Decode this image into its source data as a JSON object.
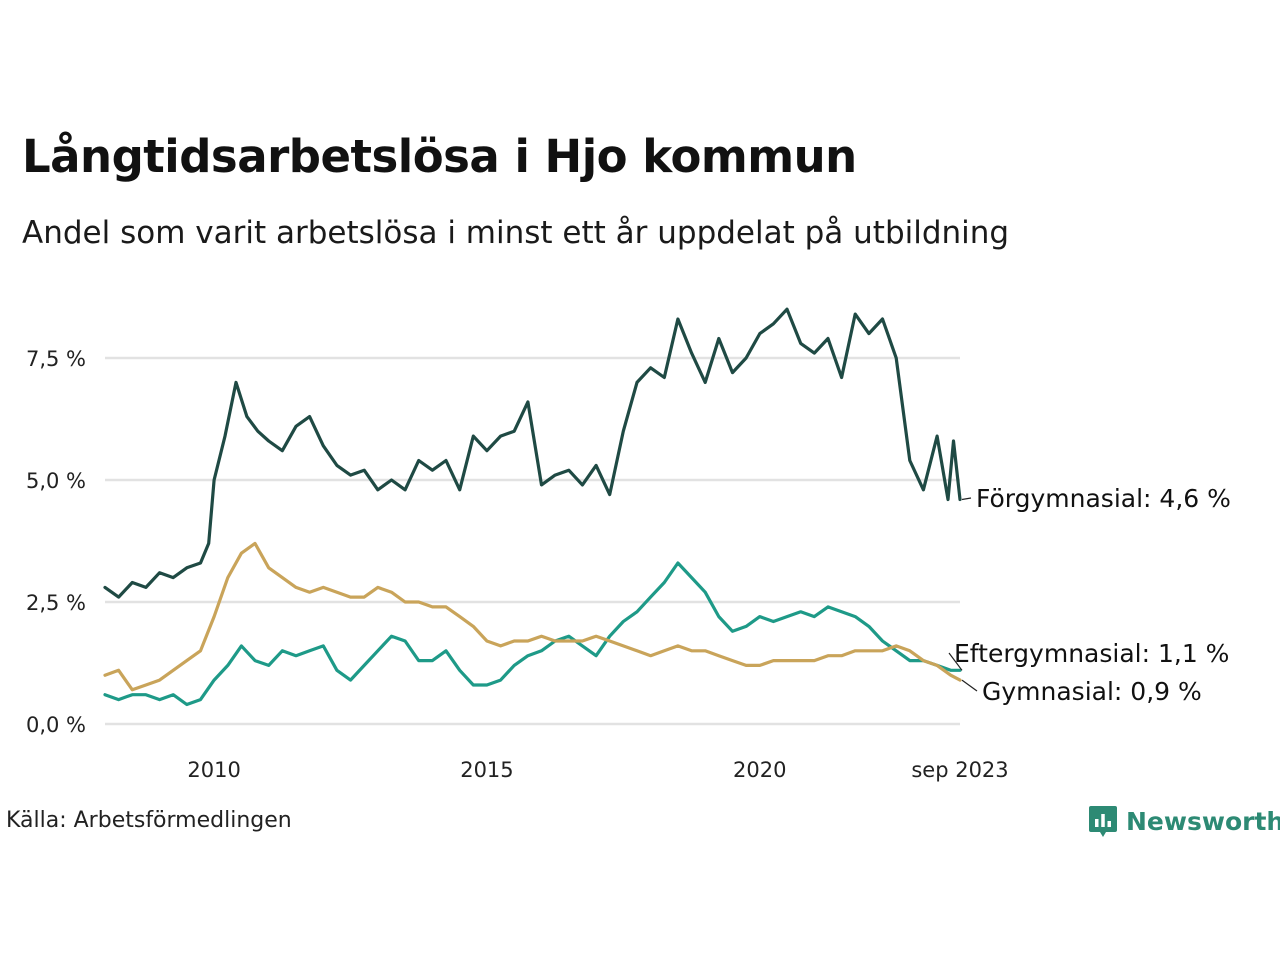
{
  "title": "Långtidsarbetslösa i Hjo kommun",
  "subtitle": "Andel som varit arbetslösa i minst ett år uppdelat på utbildning",
  "source": "Källa: Arbetsförmedlingen",
  "brand": {
    "name": "Newsworthy",
    "icon": "newsworthy-logo-icon",
    "color": "#2d8a74"
  },
  "chart_data": {
    "type": "line",
    "title": "Långtidsarbetslösa i Hjo kommun",
    "ylabel": "",
    "xlabel": "",
    "ylim": [
      0,
      8.8
    ],
    "xlim": [
      2008.0,
      2023.67
    ],
    "grid": true,
    "y_ticks": [
      {
        "value": 0,
        "label": "0,0 %"
      },
      {
        "value": 2.5,
        "label": "2,5 %"
      },
      {
        "value": 5.0,
        "label": "5,0 %"
      },
      {
        "value": 7.5,
        "label": "7,5 %"
      }
    ],
    "x_ticks": [
      {
        "value": 2010.0,
        "label": "2010"
      },
      {
        "value": 2015.0,
        "label": "2015"
      },
      {
        "value": 2020.0,
        "label": "2020"
      },
      {
        "value": 2023.67,
        "label": "sep 2023"
      }
    ],
    "series": [
      {
        "name": "Förgymnasial",
        "end_label": "Förgymnasial: 4,6 %",
        "color": "#1f4a44",
        "points": [
          [
            2008.0,
            2.8
          ],
          [
            2008.25,
            2.6
          ],
          [
            2008.5,
            2.9
          ],
          [
            2008.75,
            2.8
          ],
          [
            2009.0,
            3.1
          ],
          [
            2009.25,
            3.0
          ],
          [
            2009.5,
            3.2
          ],
          [
            2009.75,
            3.3
          ],
          [
            2009.9,
            3.7
          ],
          [
            2010.0,
            5.0
          ],
          [
            2010.2,
            5.9
          ],
          [
            2010.4,
            7.0
          ],
          [
            2010.6,
            6.3
          ],
          [
            2010.8,
            6.0
          ],
          [
            2011.0,
            5.8
          ],
          [
            2011.25,
            5.6
          ],
          [
            2011.5,
            6.1
          ],
          [
            2011.75,
            6.3
          ],
          [
            2012.0,
            5.7
          ],
          [
            2012.25,
            5.3
          ],
          [
            2012.5,
            5.1
          ],
          [
            2012.75,
            5.2
          ],
          [
            2013.0,
            4.8
          ],
          [
            2013.25,
            5.0
          ],
          [
            2013.5,
            4.8
          ],
          [
            2013.75,
            5.4
          ],
          [
            2014.0,
            5.2
          ],
          [
            2014.25,
            5.4
          ],
          [
            2014.5,
            4.8
          ],
          [
            2014.75,
            5.9
          ],
          [
            2015.0,
            5.6
          ],
          [
            2015.25,
            5.9
          ],
          [
            2015.5,
            6.0
          ],
          [
            2015.75,
            6.6
          ],
          [
            2016.0,
            4.9
          ],
          [
            2016.25,
            5.1
          ],
          [
            2016.5,
            5.2
          ],
          [
            2016.75,
            4.9
          ],
          [
            2017.0,
            5.3
          ],
          [
            2017.25,
            4.7
          ],
          [
            2017.5,
            6.0
          ],
          [
            2017.75,
            7.0
          ],
          [
            2018.0,
            7.3
          ],
          [
            2018.25,
            7.1
          ],
          [
            2018.5,
            8.3
          ],
          [
            2018.75,
            7.6
          ],
          [
            2019.0,
            7.0
          ],
          [
            2019.25,
            7.9
          ],
          [
            2019.5,
            7.2
          ],
          [
            2019.75,
            7.5
          ],
          [
            2020.0,
            8.0
          ],
          [
            2020.25,
            8.2
          ],
          [
            2020.5,
            8.5
          ],
          [
            2020.75,
            7.8
          ],
          [
            2021.0,
            7.6
          ],
          [
            2021.25,
            7.9
          ],
          [
            2021.5,
            7.1
          ],
          [
            2021.75,
            8.4
          ],
          [
            2022.0,
            8.0
          ],
          [
            2022.25,
            8.3
          ],
          [
            2022.5,
            7.5
          ],
          [
            2022.75,
            5.4
          ],
          [
            2023.0,
            4.8
          ],
          [
            2023.25,
            5.9
          ],
          [
            2023.45,
            4.6
          ],
          [
            2023.55,
            5.8
          ],
          [
            2023.67,
            4.6
          ]
        ]
      },
      {
        "name": "Eftergymnasial",
        "end_label": "Eftergymnasial: 1,1 %",
        "color": "#1e9a88",
        "points": [
          [
            2008.0,
            0.6
          ],
          [
            2008.25,
            0.5
          ],
          [
            2008.5,
            0.6
          ],
          [
            2008.75,
            0.6
          ],
          [
            2009.0,
            0.5
          ],
          [
            2009.25,
            0.6
          ],
          [
            2009.5,
            0.4
          ],
          [
            2009.75,
            0.5
          ],
          [
            2010.0,
            0.9
          ],
          [
            2010.25,
            1.2
          ],
          [
            2010.5,
            1.6
          ],
          [
            2010.75,
            1.3
          ],
          [
            2011.0,
            1.2
          ],
          [
            2011.25,
            1.5
          ],
          [
            2011.5,
            1.4
          ],
          [
            2011.75,
            1.5
          ],
          [
            2012.0,
            1.6
          ],
          [
            2012.25,
            1.1
          ],
          [
            2012.5,
            0.9
          ],
          [
            2012.75,
            1.2
          ],
          [
            2013.0,
            1.5
          ],
          [
            2013.25,
            1.8
          ],
          [
            2013.5,
            1.7
          ],
          [
            2013.75,
            1.3
          ],
          [
            2014.0,
            1.3
          ],
          [
            2014.25,
            1.5
          ],
          [
            2014.5,
            1.1
          ],
          [
            2014.75,
            0.8
          ],
          [
            2015.0,
            0.8
          ],
          [
            2015.25,
            0.9
          ],
          [
            2015.5,
            1.2
          ],
          [
            2015.75,
            1.4
          ],
          [
            2016.0,
            1.5
          ],
          [
            2016.25,
            1.7
          ],
          [
            2016.5,
            1.8
          ],
          [
            2016.75,
            1.6
          ],
          [
            2017.0,
            1.4
          ],
          [
            2017.25,
            1.8
          ],
          [
            2017.5,
            2.1
          ],
          [
            2017.75,
            2.3
          ],
          [
            2018.0,
            2.6
          ],
          [
            2018.25,
            2.9
          ],
          [
            2018.5,
            3.3
          ],
          [
            2018.75,
            3.0
          ],
          [
            2019.0,
            2.7
          ],
          [
            2019.25,
            2.2
          ],
          [
            2019.5,
            1.9
          ],
          [
            2019.75,
            2.0
          ],
          [
            2020.0,
            2.2
          ],
          [
            2020.25,
            2.1
          ],
          [
            2020.5,
            2.2
          ],
          [
            2020.75,
            2.3
          ],
          [
            2021.0,
            2.2
          ],
          [
            2021.25,
            2.4
          ],
          [
            2021.5,
            2.3
          ],
          [
            2021.75,
            2.2
          ],
          [
            2022.0,
            2.0
          ],
          [
            2022.25,
            1.7
          ],
          [
            2022.5,
            1.5
          ],
          [
            2022.75,
            1.3
          ],
          [
            2023.0,
            1.3
          ],
          [
            2023.25,
            1.2
          ],
          [
            2023.5,
            1.1
          ],
          [
            2023.67,
            1.1
          ]
        ]
      },
      {
        "name": "Gymnasial",
        "end_label": "Gymnasial: 0,9 %",
        "color": "#c9a45a",
        "points": [
          [
            2008.0,
            1.0
          ],
          [
            2008.25,
            1.1
          ],
          [
            2008.5,
            0.7
          ],
          [
            2008.75,
            0.8
          ],
          [
            2009.0,
            0.9
          ],
          [
            2009.25,
            1.1
          ],
          [
            2009.5,
            1.3
          ],
          [
            2009.75,
            1.5
          ],
          [
            2010.0,
            2.2
          ],
          [
            2010.25,
            3.0
          ],
          [
            2010.5,
            3.5
          ],
          [
            2010.75,
            3.7
          ],
          [
            2011.0,
            3.2
          ],
          [
            2011.25,
            3.0
          ],
          [
            2011.5,
            2.8
          ],
          [
            2011.75,
            2.7
          ],
          [
            2012.0,
            2.8
          ],
          [
            2012.25,
            2.7
          ],
          [
            2012.5,
            2.6
          ],
          [
            2012.75,
            2.6
          ],
          [
            2013.0,
            2.8
          ],
          [
            2013.25,
            2.7
          ],
          [
            2013.5,
            2.5
          ],
          [
            2013.75,
            2.5
          ],
          [
            2014.0,
            2.4
          ],
          [
            2014.25,
            2.4
          ],
          [
            2014.5,
            2.2
          ],
          [
            2014.75,
            2.0
          ],
          [
            2015.0,
            1.7
          ],
          [
            2015.25,
            1.6
          ],
          [
            2015.5,
            1.7
          ],
          [
            2015.75,
            1.7
          ],
          [
            2016.0,
            1.8
          ],
          [
            2016.25,
            1.7
          ],
          [
            2016.5,
            1.7
          ],
          [
            2016.75,
            1.7
          ],
          [
            2017.0,
            1.8
          ],
          [
            2017.25,
            1.7
          ],
          [
            2017.5,
            1.6
          ],
          [
            2017.75,
            1.5
          ],
          [
            2018.0,
            1.4
          ],
          [
            2018.25,
            1.5
          ],
          [
            2018.5,
            1.6
          ],
          [
            2018.75,
            1.5
          ],
          [
            2019.0,
            1.5
          ],
          [
            2019.25,
            1.4
          ],
          [
            2019.5,
            1.3
          ],
          [
            2019.75,
            1.2
          ],
          [
            2020.0,
            1.2
          ],
          [
            2020.25,
            1.3
          ],
          [
            2020.5,
            1.3
          ],
          [
            2020.75,
            1.3
          ],
          [
            2021.0,
            1.3
          ],
          [
            2021.25,
            1.4
          ],
          [
            2021.5,
            1.4
          ],
          [
            2021.75,
            1.5
          ],
          [
            2022.0,
            1.5
          ],
          [
            2022.25,
            1.5
          ],
          [
            2022.5,
            1.6
          ],
          [
            2022.75,
            1.5
          ],
          [
            2023.0,
            1.3
          ],
          [
            2023.25,
            1.2
          ],
          [
            2023.5,
            1.0
          ],
          [
            2023.67,
            0.9
          ]
        ]
      }
    ]
  }
}
